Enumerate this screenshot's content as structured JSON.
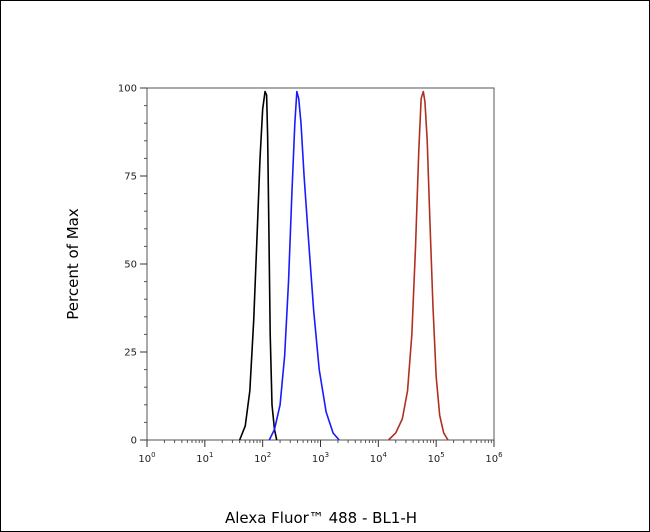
{
  "chart_data": {
    "type": "line",
    "title": "",
    "xlabel": "Alexa Fluor™ 488 - BL1-H",
    "ylabel": "Percent of Max",
    "x_scale": "log",
    "xlim": [
      1,
      1000000
    ],
    "ylim": [
      0,
      100
    ],
    "x_ticks": [
      {
        "value": 1,
        "base": "10",
        "exp": "0"
      },
      {
        "value": 10,
        "base": "10",
        "exp": "1"
      },
      {
        "value": 100,
        "base": "10",
        "exp": "2"
      },
      {
        "value": 1000,
        "base": "10",
        "exp": "3"
      },
      {
        "value": 10000,
        "base": "10",
        "exp": "4"
      },
      {
        "value": 100000,
        "base": "10",
        "exp": "5"
      },
      {
        "value": 1000000,
        "base": "10",
        "exp": "6"
      }
    ],
    "y_ticks": [
      0,
      25,
      50,
      75,
      100
    ],
    "y_tick_labels": [
      "0",
      "25",
      "50",
      "75",
      "100"
    ],
    "grid": false,
    "legend": "none",
    "series": [
      {
        "color": "#000000",
        "x": [
          40,
          50,
          60,
          70,
          80,
          90,
          100,
          110,
          117,
          122,
          128,
          135,
          145,
          160,
          175
        ],
        "y": [
          0,
          4,
          14,
          34,
          58,
          80,
          94,
          99,
          98,
          86,
          60,
          30,
          10,
          3,
          0
        ]
      },
      {
        "color": "#1a1aff",
        "x": [
          130,
          160,
          200,
          240,
          280,
          320,
          360,
          390,
          420,
          460,
          520,
          620,
          760,
          950,
          1250,
          1650,
          2100
        ],
        "y": [
          0,
          3,
          10,
          24,
          45,
          70,
          90,
          99,
          97,
          90,
          75,
          57,
          37,
          20,
          8,
          2,
          0
        ]
      },
      {
        "color": "#b03020",
        "x": [
          15000,
          20000,
          26000,
          32000,
          38000,
          44000,
          50000,
          55000,
          60000,
          64000,
          70000,
          78000,
          88000,
          100000,
          115000,
          135000,
          160000
        ],
        "y": [
          0,
          2,
          6,
          14,
          30,
          55,
          82,
          97,
          99,
          96,
          85,
          62,
          38,
          18,
          7,
          2,
          0
        ]
      }
    ]
  }
}
